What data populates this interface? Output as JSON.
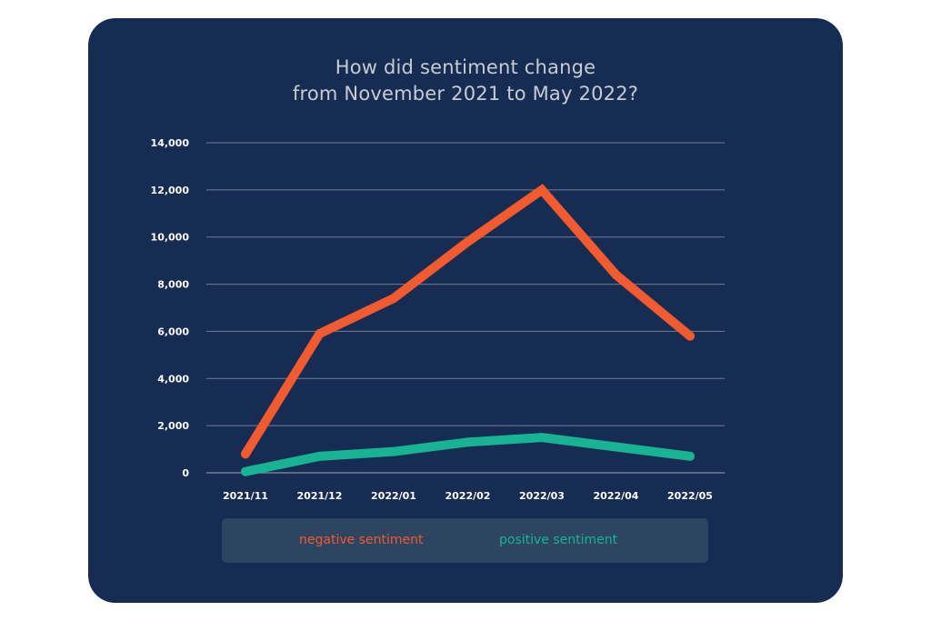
{
  "colors": {
    "background": "#172c52",
    "negative": "#f25a2f",
    "positive": "#17b394",
    "grid": "#6f7f97",
    "text": "#ffffff",
    "legend_bg": "#2d4561"
  },
  "chart_data": {
    "type": "line",
    "title_lines": [
      "How did sentiment change",
      "from November 2021 to May 2022?"
    ],
    "categories": [
      "2021/11",
      "2021/12",
      "2022/01",
      "2022/02",
      "2022/03",
      "2022/04",
      "2022/05"
    ],
    "series": [
      {
        "name": "negative sentiment",
        "color": "#f25a2f",
        "values": [
          800,
          5900,
          7400,
          9800,
          12000,
          8400,
          5800
        ]
      },
      {
        "name": "positive sentiment",
        "color": "#17b394",
        "values": [
          50,
          700,
          900,
          1300,
          1500,
          1100,
          700
        ]
      }
    ],
    "ylim": [
      0,
      14000
    ],
    "yticks": [
      0,
      2000,
      4000,
      6000,
      8000,
      10000,
      12000,
      14000
    ],
    "ytick_labels": [
      "0",
      "2,000",
      "4,000",
      "6,000",
      "8,000",
      "10,000",
      "12,000",
      "14,000"
    ],
    "grid": true,
    "legend_position": "bottom"
  }
}
